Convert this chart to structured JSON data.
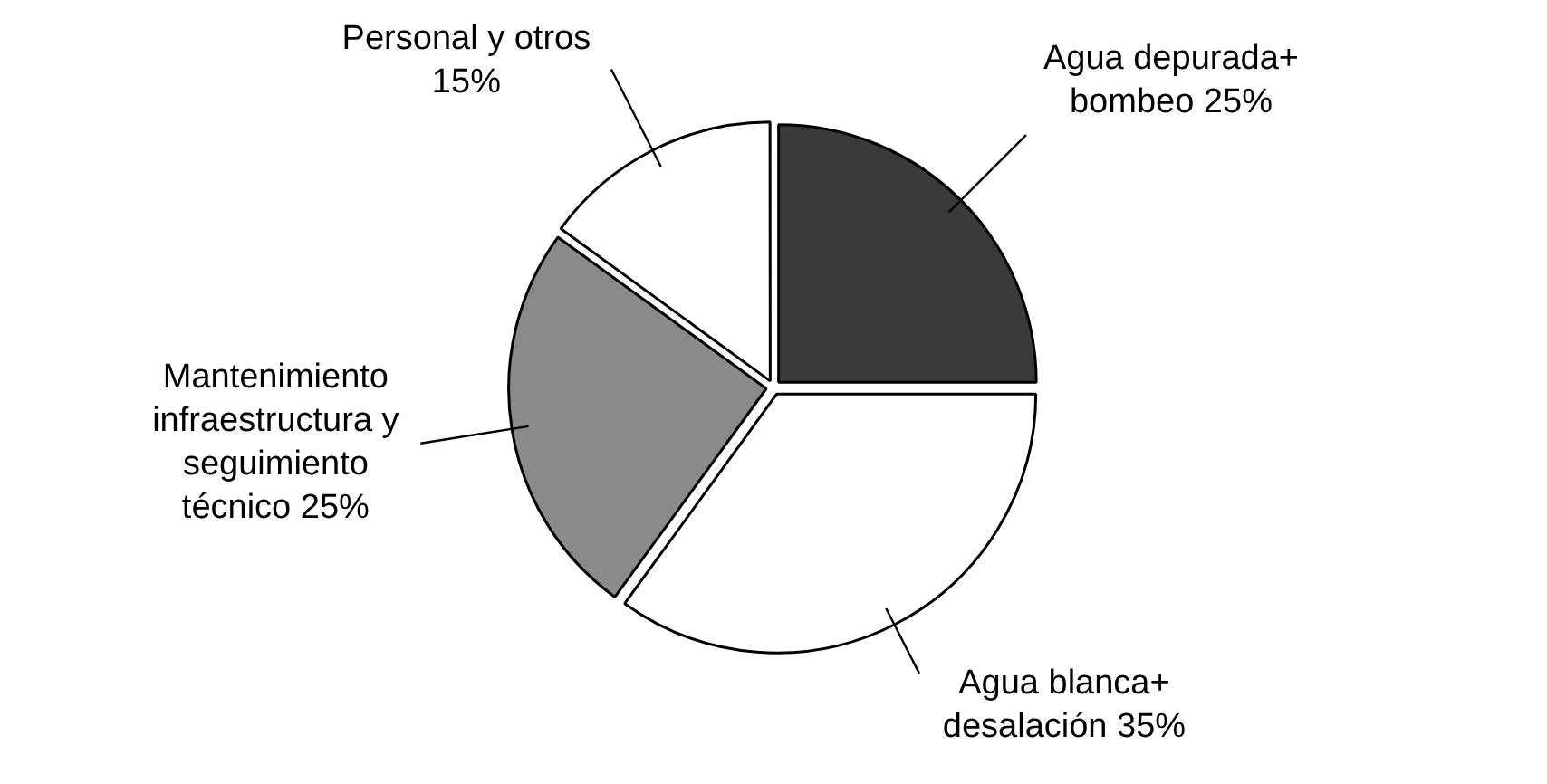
{
  "chart_data": {
    "type": "pie",
    "categories": [
      "Agua depurada+ bombeo",
      "Agua blanca+ desalación",
      "Mantenimiento infraestructura y seguimiento técnico",
      "Personal y otros"
    ],
    "values": [
      25,
      35,
      25,
      15
    ],
    "value_labels": [
      "25%",
      "35%",
      "25%",
      "15%"
    ],
    "colors": [
      "#3a3a3a",
      "#ffffff",
      "#8a8a8a",
      "#ffffff"
    ],
    "legend": false
  }
}
